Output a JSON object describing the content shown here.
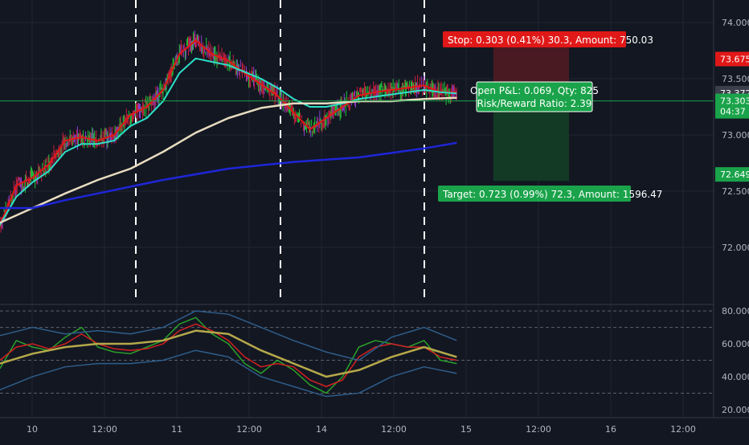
{
  "colors": {
    "background": "#131722",
    "grid": "#1f2433",
    "axis_text": "#b2b5be",
    "ema_fast": "#e01818",
    "ema_mid": "#2de0c8",
    "sma_slow": "#e8dcc0",
    "sma_long": "#1e26d8",
    "candle_up": "#22c53a",
    "candle_down": "#c21f3d",
    "candle_alt": "#8a3fd1",
    "stop_zone": "#4a1a22",
    "target_zone": "#133a24",
    "stop_label_bg": "#e01818",
    "target_label_bg": "#1aa34a",
    "rsi_fast": "#2aa02a",
    "rsi_signal": "#d42020",
    "rsi_slow": "#b5a84a",
    "rsi_band": "#2e5d8a"
  },
  "chart_data": [
    {
      "type": "line",
      "name": "price",
      "ylim": [
        71.8,
        74.1
      ],
      "y_ticks": [
        "74.000",
        "73.500",
        "73.000",
        "72.500",
        "72.000"
      ],
      "x_ticks": [
        "10",
        "12:00",
        "11",
        "12:00",
        "14",
        "12:00",
        "15",
        "12:00",
        "16",
        "12:00"
      ],
      "price_tags": [
        {
          "label": "73.675",
          "value": 73.675,
          "color": "#e01818"
        },
        {
          "label": "73.372",
          "value": 73.372,
          "color": "#3a3f4b"
        },
        {
          "label": "73.303",
          "value": 73.303,
          "color": "#1aa34a"
        },
        {
          "label": "04:37",
          "value": 73.21,
          "color": "#1aa34a"
        },
        {
          "label": "72.649",
          "value": 72.649,
          "color": "#1aa34a"
        }
      ],
      "current_price": 73.303,
      "series": [
        {
          "key": "ema_fast",
          "x": [
            0,
            4,
            8,
            12,
            16,
            20,
            24,
            28,
            32,
            36,
            40,
            44,
            48,
            52,
            56,
            60,
            64,
            68,
            72,
            76,
            80,
            84,
            88,
            92,
            96,
            100,
            104,
            108,
            112
          ],
          "values": [
            72.2,
            72.55,
            72.62,
            72.74,
            72.95,
            72.98,
            72.95,
            73.0,
            73.18,
            73.25,
            73.4,
            73.72,
            73.84,
            73.72,
            73.66,
            73.55,
            73.45,
            73.35,
            73.2,
            73.05,
            73.15,
            73.25,
            73.35,
            73.38,
            73.4,
            73.42,
            73.44,
            73.38,
            73.38
          ]
        },
        {
          "key": "ema_mid",
          "x": [
            0,
            4,
            8,
            12,
            16,
            20,
            24,
            28,
            32,
            36,
            40,
            44,
            48,
            52,
            56,
            60,
            64,
            68,
            72,
            76,
            80,
            84,
            88,
            92,
            96,
            100,
            104,
            108,
            112
          ],
          "values": [
            72.2,
            72.45,
            72.58,
            72.68,
            72.85,
            72.92,
            72.92,
            72.95,
            73.08,
            73.15,
            73.3,
            73.55,
            73.68,
            73.65,
            73.62,
            73.56,
            73.5,
            73.42,
            73.32,
            73.25,
            73.25,
            73.28,
            73.32,
            73.34,
            73.36,
            73.38,
            73.4,
            73.38,
            73.37
          ]
        },
        {
          "key": "sma_slow",
          "x": [
            0,
            8,
            16,
            24,
            32,
            40,
            48,
            56,
            64,
            72,
            80,
            88,
            96,
            104,
            112
          ],
          "values": [
            72.22,
            72.35,
            72.48,
            72.6,
            72.7,
            72.85,
            73.02,
            73.15,
            73.24,
            73.28,
            73.28,
            73.3,
            73.3,
            73.32,
            73.33
          ]
        },
        {
          "key": "sma_long",
          "x": [
            0,
            8,
            16,
            24,
            32,
            40,
            48,
            56,
            64,
            72,
            80,
            88,
            96,
            104,
            112
          ],
          "values": [
            72.35,
            72.35,
            72.42,
            72.48,
            72.54,
            72.6,
            72.65,
            72.7,
            72.73,
            72.76,
            72.78,
            72.8,
            72.84,
            72.88,
            72.93
          ]
        }
      ],
      "x_range": [
        0,
        175
      ]
    },
    {
      "type": "line",
      "name": "oscillator",
      "ylim": [
        18,
        82
      ],
      "y_ticks": [
        "80.000",
        "60.000",
        "40.000",
        "20.000"
      ],
      "levels": [
        80,
        70,
        50,
        30
      ],
      "series": [
        {
          "key": "rsi_fast",
          "x": [
            0,
            4,
            8,
            12,
            16,
            20,
            24,
            28,
            32,
            36,
            40,
            44,
            48,
            52,
            56,
            60,
            64,
            68,
            72,
            76,
            80,
            84,
            88,
            92,
            96,
            100,
            104,
            108,
            112
          ],
          "values": [
            45,
            62,
            58,
            56,
            64,
            70,
            58,
            55,
            54,
            58,
            62,
            72,
            76,
            66,
            60,
            48,
            42,
            50,
            44,
            35,
            30,
            40,
            58,
            62,
            60,
            58,
            62,
            50,
            48
          ]
        },
        {
          "key": "rsi_signal",
          "x": [
            0,
            4,
            8,
            12,
            16,
            20,
            24,
            28,
            32,
            36,
            40,
            44,
            48,
            52,
            56,
            60,
            64,
            68,
            72,
            76,
            80,
            84,
            88,
            92,
            96,
            100,
            104,
            108,
            112
          ],
          "values": [
            50,
            58,
            60,
            57,
            60,
            66,
            60,
            57,
            56,
            57,
            60,
            68,
            72,
            68,
            62,
            52,
            46,
            48,
            46,
            38,
            34,
            38,
            52,
            58,
            60,
            58,
            58,
            52,
            50
          ]
        },
        {
          "key": "rsi_slow",
          "x": [
            0,
            8,
            16,
            24,
            32,
            40,
            48,
            56,
            64,
            72,
            80,
            88,
            96,
            104,
            112
          ],
          "values": [
            48,
            54,
            58,
            60,
            60,
            62,
            68,
            66,
            56,
            48,
            40,
            44,
            52,
            58,
            52
          ]
        },
        {
          "key": "rsi_band",
          "x": [
            0,
            8,
            16,
            24,
            32,
            40,
            48,
            56,
            64,
            72,
            80,
            88,
            96,
            104,
            112
          ],
          "values": [
            65,
            70,
            66,
            68,
            66,
            70,
            80,
            78,
            70,
            62,
            55,
            50,
            64,
            70,
            62
          ]
        },
        {
          "key": "rsi_band",
          "x": [
            0,
            8,
            16,
            24,
            32,
            40,
            48,
            56,
            64,
            72,
            80,
            88,
            96,
            104,
            112
          ],
          "values": [
            32,
            40,
            46,
            48,
            48,
            50,
            56,
            52,
            40,
            34,
            28,
            30,
            40,
            46,
            42
          ]
        }
      ]
    }
  ],
  "trade": {
    "stop_label": "Stop: 0.303 (0.41%) 30.3, Amount: 750.03",
    "target_label": "Target: 0.723 (0.99%) 72.3, Amount: 1596.47",
    "open_pl_label": "Open P&L: 0.069, Qty: 825",
    "risk_reward_label": "Risk/Reward Ratio: 2.39",
    "entry": 73.372,
    "stop": 73.675,
    "target": 72.649
  }
}
